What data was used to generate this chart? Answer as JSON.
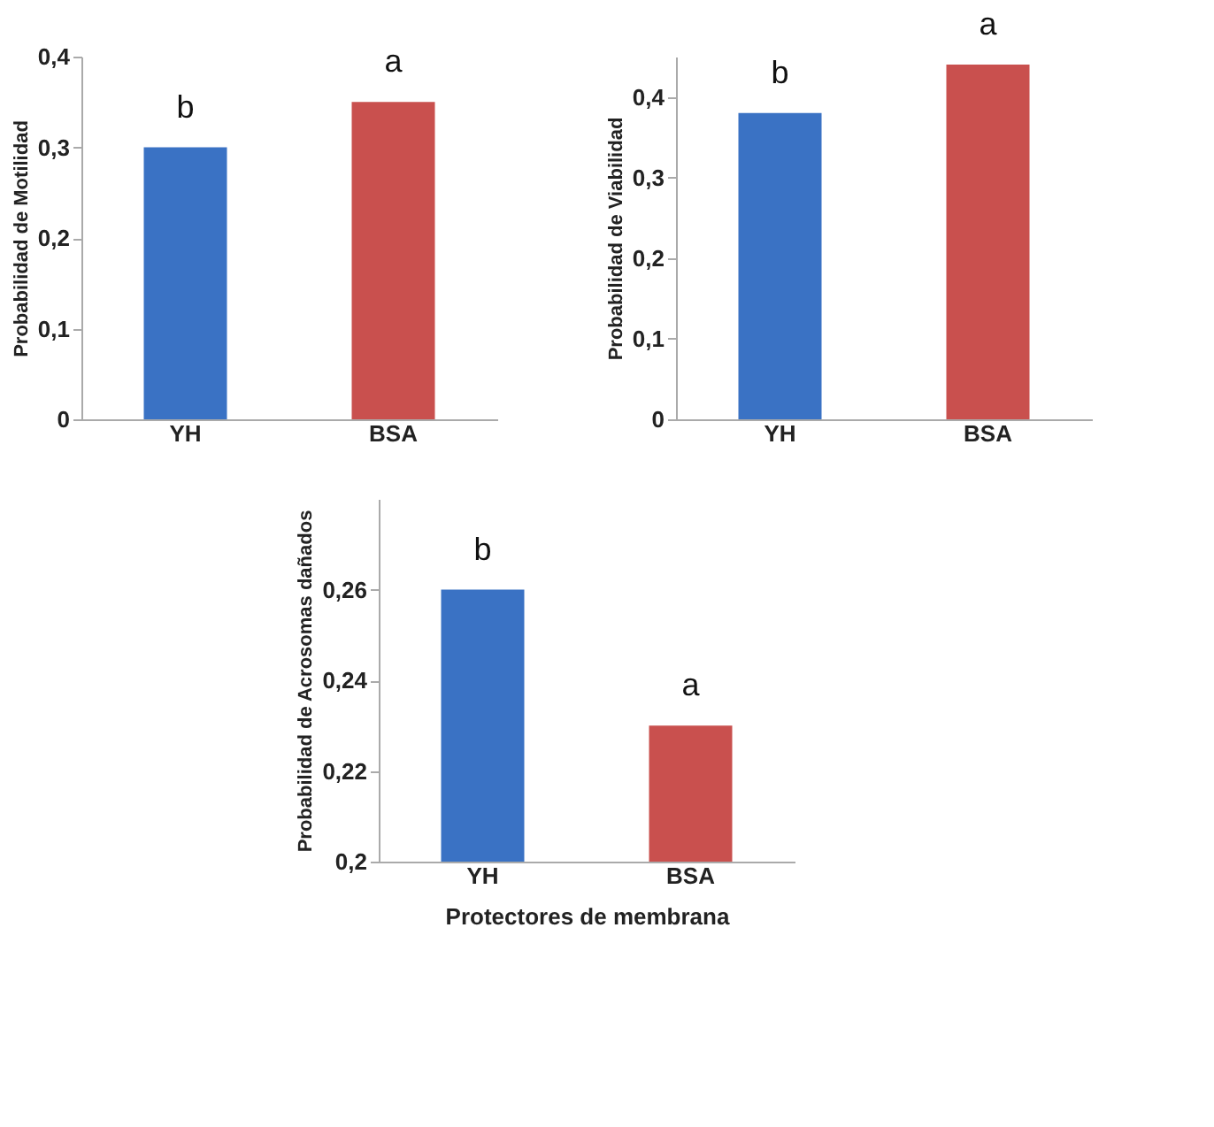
{
  "chart_data": [
    {
      "type": "bar",
      "ylabel": "Probabilidad  de Motilidad",
      "categories": [
        "YH",
        "BSA"
      ],
      "values": [
        0.3,
        0.35
      ],
      "colors": [
        "#3a72c4",
        "#c9504e"
      ],
      "ylim": [
        0,
        0.4
      ],
      "yticks": [
        0,
        {
          "value": 0.1,
          "label": "0,1"
        },
        {
          "value": 0.2,
          "label": "0,2"
        },
        {
          "value": 0.3,
          "label": "0,3"
        },
        {
          "value": 0.4,
          "label": "0,4"
        }
      ],
      "grid": false,
      "legend": false,
      "annotations": [
        {
          "text": "b",
          "x": "YH",
          "y": 0.3
        },
        {
          "text": "a",
          "x": "BSA",
          "y": 0.35
        }
      ]
    },
    {
      "type": "bar",
      "ylabel": "Probabilidad  de Viabilidad",
      "categories": [
        "YH",
        "BSA"
      ],
      "values": [
        0.38,
        0.44
      ],
      "colors": [
        "#3a72c4",
        "#c9504e"
      ],
      "ylim": [
        0,
        0.45
      ],
      "yticks": [
        0,
        {
          "value": 0.1,
          "label": "0,1"
        },
        {
          "value": 0.2,
          "label": "0,2"
        },
        {
          "value": 0.3,
          "label": "0,3"
        },
        {
          "value": 0.4,
          "label": "0,4"
        }
      ],
      "grid": false,
      "legend": false,
      "annotations": [
        {
          "text": "b",
          "x": "YH",
          "y": 0.38
        },
        {
          "text": "a",
          "x": "BSA",
          "y": 0.44
        }
      ]
    },
    {
      "type": "bar",
      "xlabel": "Protectores de membrana",
      "ylabel": "Probabilidad  de Acrosomas dañados",
      "categories": [
        "YH",
        "BSA"
      ],
      "values": [
        0.26,
        0.23
      ],
      "colors": [
        "#3a72c4",
        "#c9504e"
      ],
      "ylim": [
        0.2,
        0.28
      ],
      "yticks": [
        {
          "value": 0.2,
          "label": "0,2"
        },
        {
          "value": 0.22,
          "label": "0,22"
        },
        {
          "value": 0.24,
          "label": "0,24"
        },
        {
          "value": 0.26,
          "label": "0,26"
        }
      ],
      "grid": false,
      "legend": false,
      "annotations": [
        {
          "text": "b",
          "x": "YH",
          "y": 0.26
        },
        {
          "text": "a",
          "x": "BSA",
          "y": 0.23
        }
      ]
    }
  ]
}
